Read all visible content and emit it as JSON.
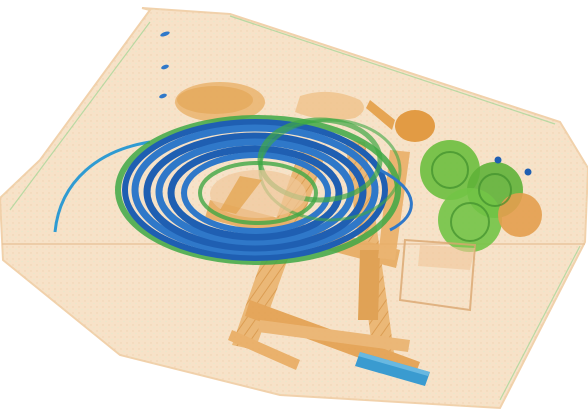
{
  "scene": {
    "description_tag": "xray-baggage-scan",
    "colors": {
      "background": "#ffffff",
      "bag_shell": "#f6d9b8",
      "organic_orange": "#e2a04a",
      "organic_light": "#f0c17e",
      "metal_blue": "#2f78c9",
      "coil_blue_dark": "#1f5fb2",
      "coil_green": "#3ea845",
      "fruit_green": "#6cbf3e",
      "fruit_dark": "#3e8f2c",
      "teal_item": "#3a9bd0"
    }
  }
}
